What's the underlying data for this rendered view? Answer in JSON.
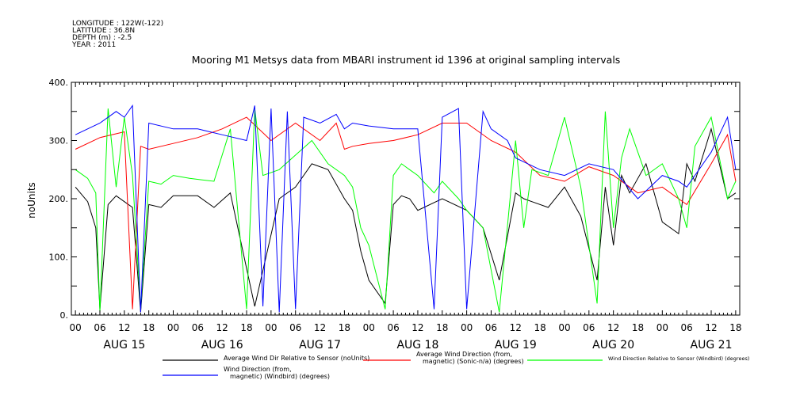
{
  "header": {
    "longitude": "LONGITUDE : 122W(-122)",
    "latitude": "LATITUDE : 36.8N",
    "depth": "DEPTH (m) : -2.5",
    "year": "YEAR : 2011"
  },
  "chart_data": {
    "type": "line",
    "title": "Mooring M1 Metsys data from MBARI instrument id 1396 at original sampling intervals",
    "ylabel": "noUnits",
    "xlabel": "",
    "ylim": [
      0,
      400
    ],
    "yticks": [
      "0.",
      "100.",
      "200.",
      "300.",
      "400."
    ],
    "hour_ticks": [
      "00",
      "06",
      "12",
      "18",
      "00",
      "06",
      "12",
      "18",
      "00",
      "06",
      "12",
      "18",
      "00",
      "06",
      "12",
      "18",
      "00",
      "06",
      "12",
      "18",
      "00",
      "06",
      "12",
      "18",
      "00",
      "06",
      "12",
      "18"
    ],
    "day_labels": [
      "AUG 15",
      "AUG 16",
      "AUG 17",
      "AUG 18",
      "AUG 19",
      "AUG 20",
      "AUG 21"
    ],
    "xlim_hours": [
      -1,
      163
    ],
    "grid": false,
    "series": [
      {
        "name": "Average Wind Dir Relative to Sensor (noUnits)",
        "color": "#000000",
        "x": [
          0,
          3,
          5,
          6,
          8,
          10,
          12,
          14,
          16,
          18,
          21,
          24,
          30,
          34,
          38,
          44,
          50,
          54,
          58,
          62,
          66,
          68,
          70,
          72,
          76,
          78,
          80,
          82,
          84,
          90,
          96,
          100,
          104,
          108,
          110,
          112,
          116,
          120,
          124,
          128,
          130,
          132,
          134,
          136,
          140,
          144,
          148,
          150,
          152,
          156,
          160,
          162
        ],
        "values": [
          220,
          195,
          150,
          10,
          190,
          205,
          195,
          185,
          5,
          190,
          185,
          205,
          205,
          185,
          210,
          15,
          200,
          220,
          260,
          250,
          200,
          180,
          110,
          60,
          20,
          190,
          205,
          200,
          180,
          200,
          180,
          150,
          60,
          210,
          200,
          195,
          185,
          220,
          170,
          60,
          220,
          120,
          240,
          210,
          260,
          160,
          140,
          260,
          230,
          320,
          200,
          210
        ]
      },
      {
        "name": "Average Wind Direction (from, magnetic) (Sonic-n/a) (degrees)",
        "color": "#ff0000",
        "x": [
          0,
          6,
          12,
          14,
          16,
          18,
          24,
          30,
          36,
          42,
          48,
          54,
          60,
          64,
          66,
          68,
          72,
          78,
          84,
          90,
          96,
          102,
          108,
          114,
          120,
          126,
          132,
          138,
          144,
          150,
          156,
          160,
          162
        ],
        "values": [
          285,
          305,
          315,
          10,
          290,
          285,
          295,
          305,
          320,
          340,
          300,
          330,
          300,
          330,
          285,
          290,
          295,
          300,
          310,
          330,
          330,
          300,
          280,
          240,
          230,
          255,
          240,
          210,
          220,
          190,
          260,
          310,
          230
        ]
      },
      {
        "name": "Wind Direction Relative to Sensor (Windbird) (degrees)",
        "color": "#00ff00",
        "x": [
          0,
          3,
          5,
          6,
          8,
          10,
          12,
          14,
          16,
          18,
          21,
          24,
          28,
          34,
          38,
          42,
          44,
          46,
          50,
          54,
          58,
          62,
          66,
          68,
          70,
          72,
          76,
          78,
          80,
          82,
          84,
          88,
          90,
          94,
          96,
          100,
          104,
          108,
          110,
          112,
          116,
          120,
          124,
          128,
          130,
          132,
          134,
          136,
          140,
          144,
          148,
          150,
          152,
          156,
          160,
          162
        ],
        "values": [
          250,
          235,
          210,
          5,
          355,
          220,
          340,
          240,
          10,
          230,
          225,
          240,
          235,
          230,
          320,
          10,
          355,
          240,
          250,
          275,
          300,
          260,
          240,
          220,
          150,
          120,
          10,
          240,
          260,
          250,
          240,
          210,
          230,
          200,
          180,
          150,
          5,
          300,
          150,
          250,
          240,
          340,
          220,
          20,
          350,
          150,
          270,
          320,
          240,
          260,
          200,
          150,
          290,
          340,
          200,
          230
        ]
      },
      {
        "name": "Wind Direction (from, magnetic) (Windbird) (degrees)",
        "color": "#0000ff",
        "x": [
          0,
          6,
          10,
          12,
          14,
          16,
          18,
          24,
          30,
          36,
          42,
          44,
          46,
          48,
          50,
          52,
          54,
          56,
          60,
          64,
          66,
          68,
          72,
          78,
          84,
          88,
          90,
          94,
          96,
          100,
          102,
          106,
          108,
          114,
          120,
          126,
          132,
          138,
          144,
          148,
          150,
          156,
          160,
          162
        ],
        "values": [
          310,
          330,
          350,
          340,
          360,
          5,
          330,
          320,
          320,
          310,
          300,
          360,
          15,
          355,
          5,
          350,
          10,
          340,
          330,
          345,
          320,
          330,
          325,
          320,
          320,
          10,
          340,
          355,
          10,
          350,
          320,
          300,
          270,
          250,
          240,
          260,
          250,
          200,
          240,
          230,
          220,
          280,
          340,
          250
        ]
      }
    ],
    "legend": [
      {
        "label": "Average Wind Dir Relative to Sensor (noUnits)",
        "color": "#000000"
      },
      {
        "label": "Average Wind Direction (from, magnetic) (Sonic-n/a) (degrees)",
        "color": "#ff0000"
      },
      {
        "label": "Wind Direction Relative to Sensor (Windbird) (degrees)",
        "color": "#00ff00"
      },
      {
        "label": "Wind Direction (from, magnetic) (Windbird) (degrees)",
        "color": "#0000ff"
      }
    ]
  }
}
